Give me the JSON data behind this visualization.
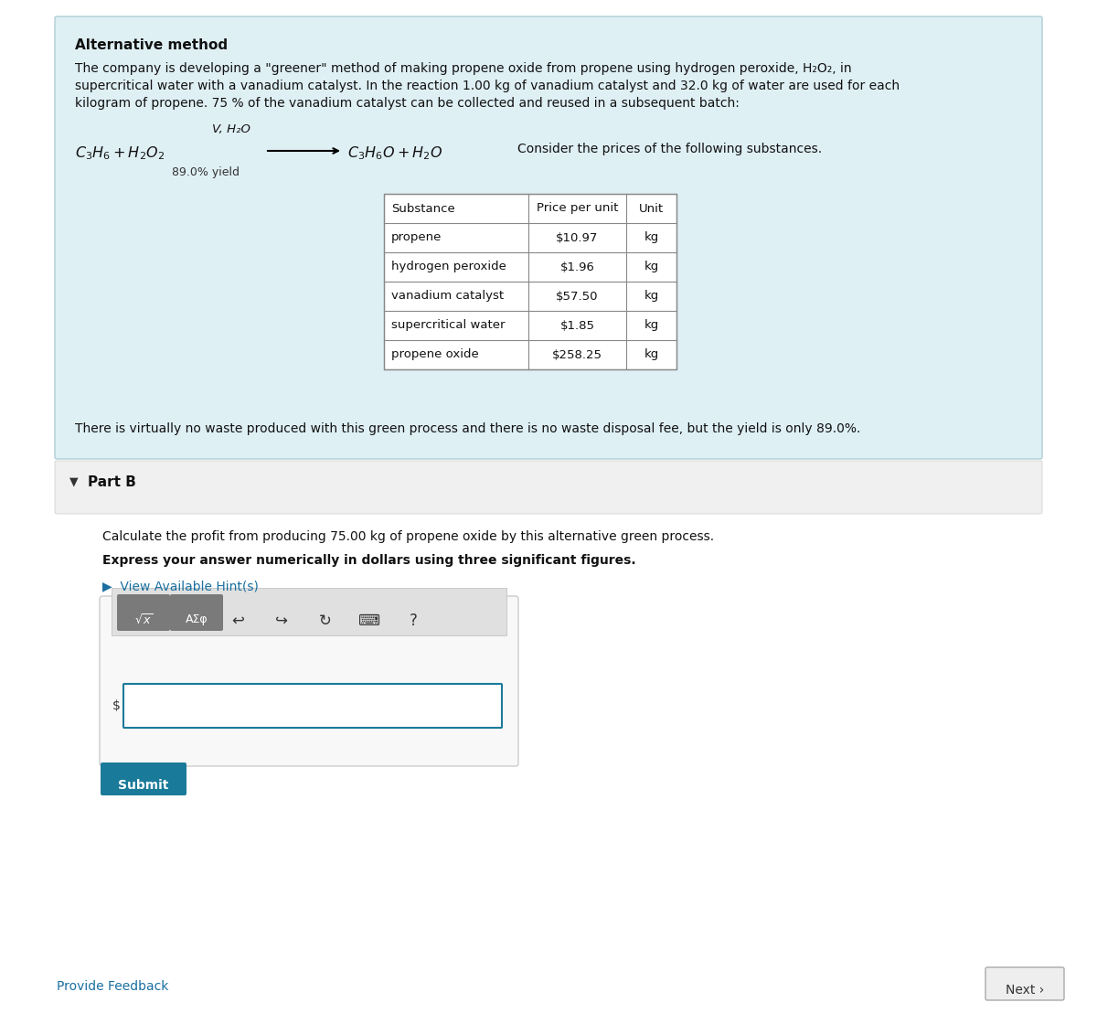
{
  "bg_color": "#f0f8fa",
  "white_bg": "#ffffff",
  "light_blue_bg": "#dff0f5",
  "header_text": "Alternative method",
  "body_text_1": "The company is developing a \"greener\" method of making propene oxide from propene using hydrogen peroxide, H₂O₂, in",
  "body_text_2": "supercritical water with a vanadium catalyst. In the reaction 1.00 kg of vanadium catalyst and 32.0 kg of water are used for each",
  "body_text_3": "kilogram of propene. 75 % of the vanadium catalyst can be collected and reused in a subsequent batch:",
  "catalyst_label": "V, H₂O",
  "reaction_suffix": "Consider the prices of the following substances.",
  "yield_text": "89.0% yield",
  "table_headers": [
    "Substance",
    "Price per unit",
    "Unit"
  ],
  "table_rows": [
    [
      "propene",
      "$10.97",
      "kg"
    ],
    [
      "hydrogen peroxide",
      "$1.96",
      "kg"
    ],
    [
      "vanadium catalyst",
      "$57.50",
      "kg"
    ],
    [
      "supercritical water",
      "$1.85",
      "kg"
    ],
    [
      "propene oxide",
      "$258.25",
      "kg"
    ]
  ],
  "waste_text": "There is virtually no waste produced with this green process and there is no waste disposal fee, but the yield is only 89.0%.",
  "part_b_label": "Part B",
  "calc_text": "Calculate the profit from producing 75.00 kg of propene oxide by this alternative green process.",
  "express_text": "Express your answer numerically in dollars using three significant figures.",
  "hint_text": "View Available Hint(s)",
  "submit_text": "Submit",
  "submit_color": "#1a7a9a",
  "feedback_text": "Provide Feedback",
  "next_text": "Next ›",
  "link_color": "#1a6fa0",
  "border_color": "#b0cdd5",
  "table_border": "#888888",
  "toolbar_bg": "#e0e0e0",
  "btn_color": "#7a7a7a"
}
